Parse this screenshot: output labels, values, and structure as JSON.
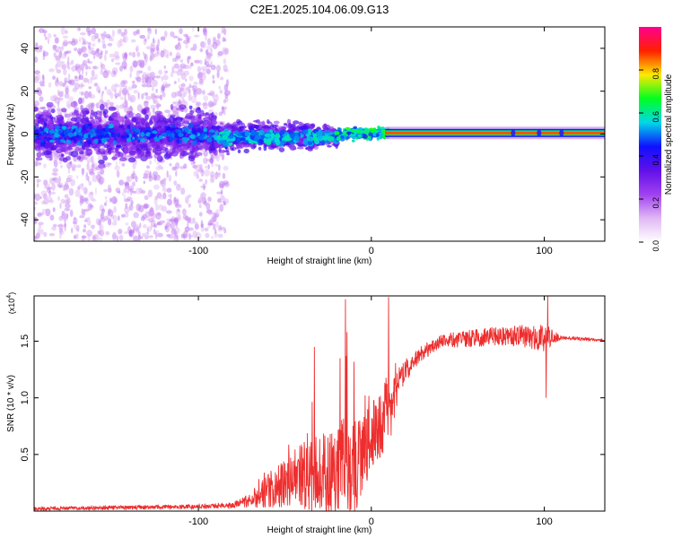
{
  "chart_data": [
    {
      "type": "heatmap",
      "title": "C2E1.2025.104.06.09.G13",
      "xlabel": "Height of straight line (km)",
      "ylabel": "Frequency (Hz)",
      "xlim": [
        -195,
        135
      ],
      "ylim": [
        -50,
        50
      ],
      "xticks": [
        {
          "value": -100,
          "label": "-100"
        },
        {
          "value": 0,
          "label": "0"
        },
        {
          "value": 100,
          "label": "100"
        }
      ],
      "yticks": [
        {
          "value": -40,
          "label": "-40"
        },
        {
          "value": -20,
          "label": "-20"
        },
        {
          "value": 0,
          "label": "0"
        },
        {
          "value": 20,
          "label": "20"
        },
        {
          "value": 40,
          "label": "40"
        }
      ],
      "colorbar": {
        "label": "Normalized spectral amplitude",
        "range": [
          0,
          1
        ],
        "ticks": [
          {
            "value": 0.0,
            "label": "0.0"
          },
          {
            "value": 0.2,
            "label": "0.2"
          },
          {
            "value": 0.4,
            "label": "0.4"
          },
          {
            "value": 0.6,
            "label": "0.6"
          },
          {
            "value": 0.8,
            "label": "0.8"
          }
        ],
        "colors": [
          "#ffffff",
          "#e0b8f4",
          "#a040f0",
          "#6010e8",
          "#1010ff",
          "#00d8e8",
          "#00ff20",
          "#ffe800",
          "#ff2000",
          "#ff0090"
        ]
      },
      "regions": [
        {
          "x": [
            -195,
            -90
          ],
          "freq_spread_hz": 48,
          "description_amp": 0.35
        },
        {
          "x": [
            -90,
            -20
          ],
          "freq_spread_hz": 4,
          "description_amp": 0.45
        },
        {
          "x": [
            -20,
            10
          ],
          "freq_spread_hz": 2,
          "description_amp": 0.55
        },
        {
          "x": [
            10,
            135
          ],
          "freq_hz": 0.5,
          "description_amp": 0.85
        }
      ]
    },
    {
      "type": "line",
      "xlabel": "Height of straight line (km)",
      "ylabel": "SNR (10 * v/v)",
      "y_multiplier": "(x10",
      "y_multiplier_exp": "4",
      "y_multiplier_close": ")",
      "xlim": [
        -195,
        135
      ],
      "ylim": [
        0,
        19000
      ],
      "color": "#ee2e2e",
      "xticks": [
        {
          "value": -100,
          "label": "-100"
        },
        {
          "value": 0,
          "label": "0"
        },
        {
          "value": 100,
          "label": "100"
        }
      ],
      "yticks": [
        {
          "value": 5000,
          "label": "0.5"
        },
        {
          "value": 10000,
          "label": "1.0"
        },
        {
          "value": 15000,
          "label": "1.5"
        }
      ],
      "envelope": {
        "x": [
          -195,
          -150,
          -100,
          -80,
          -70,
          -60,
          -50,
          -40,
          -30,
          -20,
          -15,
          -10,
          -5,
          0,
          5,
          10,
          15,
          20,
          30,
          40,
          60,
          80,
          100,
          102,
          110,
          135
        ],
        "base": [
          200,
          300,
          400,
          500,
          1000,
          1800,
          2500,
          3000,
          3300,
          3500,
          4000,
          3800,
          5000,
          6500,
          7500,
          8500,
          11000,
          12500,
          14000,
          15000,
          15300,
          15500,
          15300,
          15400,
          15300,
          15100
        ],
        "amp": [
          150,
          180,
          200,
          250,
          700,
          1500,
          2200,
          3000,
          3500,
          3800,
          4200,
          4200,
          3500,
          3000,
          3200,
          3500,
          1500,
          1000,
          700,
          600,
          800,
          900,
          1200,
          1000,
          200,
          100
        ]
      },
      "spikes": [
        {
          "x": -33,
          "y": 14500
        },
        {
          "x": -18,
          "y": 13500
        },
        {
          "x": -15,
          "y": 18700
        },
        {
          "x": -14,
          "y": 15800
        },
        {
          "x": 10,
          "y": 18900
        },
        {
          "x": 101,
          "y": 10000
        },
        {
          "x": 102,
          "y": 19000
        }
      ]
    }
  ]
}
